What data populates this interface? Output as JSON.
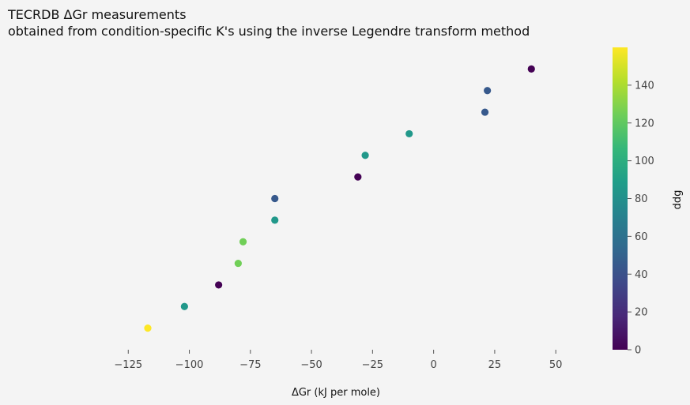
{
  "chart_data": {
    "type": "scatter",
    "title_line1": "TECRDB ΔGr measurements",
    "title_line2": "obtained from condition-specific K's using the inverse Legendre transform method",
    "xlabel": "ΔGr (kJ per mole)",
    "ylabel": "",
    "xlim": [
      -150,
      70
    ],
    "ylim": [
      0,
      14
    ],
    "grid": false,
    "x_ticks": [
      -125,
      -100,
      -75,
      -50,
      -25,
      0,
      25,
      50
    ],
    "x_tick_labels": [
      "−125",
      "−100",
      "−75",
      "−50",
      "−25",
      "0",
      "25",
      "50"
    ],
    "points": [
      {
        "x": -117,
        "y": 1,
        "ddg": 160
      },
      {
        "x": -102,
        "y": 2,
        "ddg": 85
      },
      {
        "x": -88,
        "y": 3,
        "ddg": 0
      },
      {
        "x": -80,
        "y": 4,
        "ddg": 125
      },
      {
        "x": -78,
        "y": 5,
        "ddg": 125
      },
      {
        "x": -65,
        "y": 6,
        "ddg": 85
      },
      {
        "x": -65,
        "y": 7,
        "ddg": 45
      },
      {
        "x": -31,
        "y": 8,
        "ddg": 0
      },
      {
        "x": -28,
        "y": 9,
        "ddg": 85
      },
      {
        "x": -10,
        "y": 10,
        "ddg": 85
      },
      {
        "x": 21,
        "y": 11,
        "ddg": 45
      },
      {
        "x": 22,
        "y": 12,
        "ddg": 45
      },
      {
        "x": 40,
        "y": 13,
        "ddg": 0
      }
    ],
    "colorbar": {
      "label": "ddg",
      "min": 0,
      "max": 160,
      "ticks": [
        0,
        20,
        40,
        60,
        80,
        100,
        120,
        140
      ],
      "colormap": "viridis",
      "colors": [
        "#440154",
        "#482878",
        "#3e4989",
        "#31688e",
        "#26828e",
        "#1f9e89",
        "#35b779",
        "#6ece58",
        "#b5de2b",
        "#fde725"
      ]
    }
  }
}
